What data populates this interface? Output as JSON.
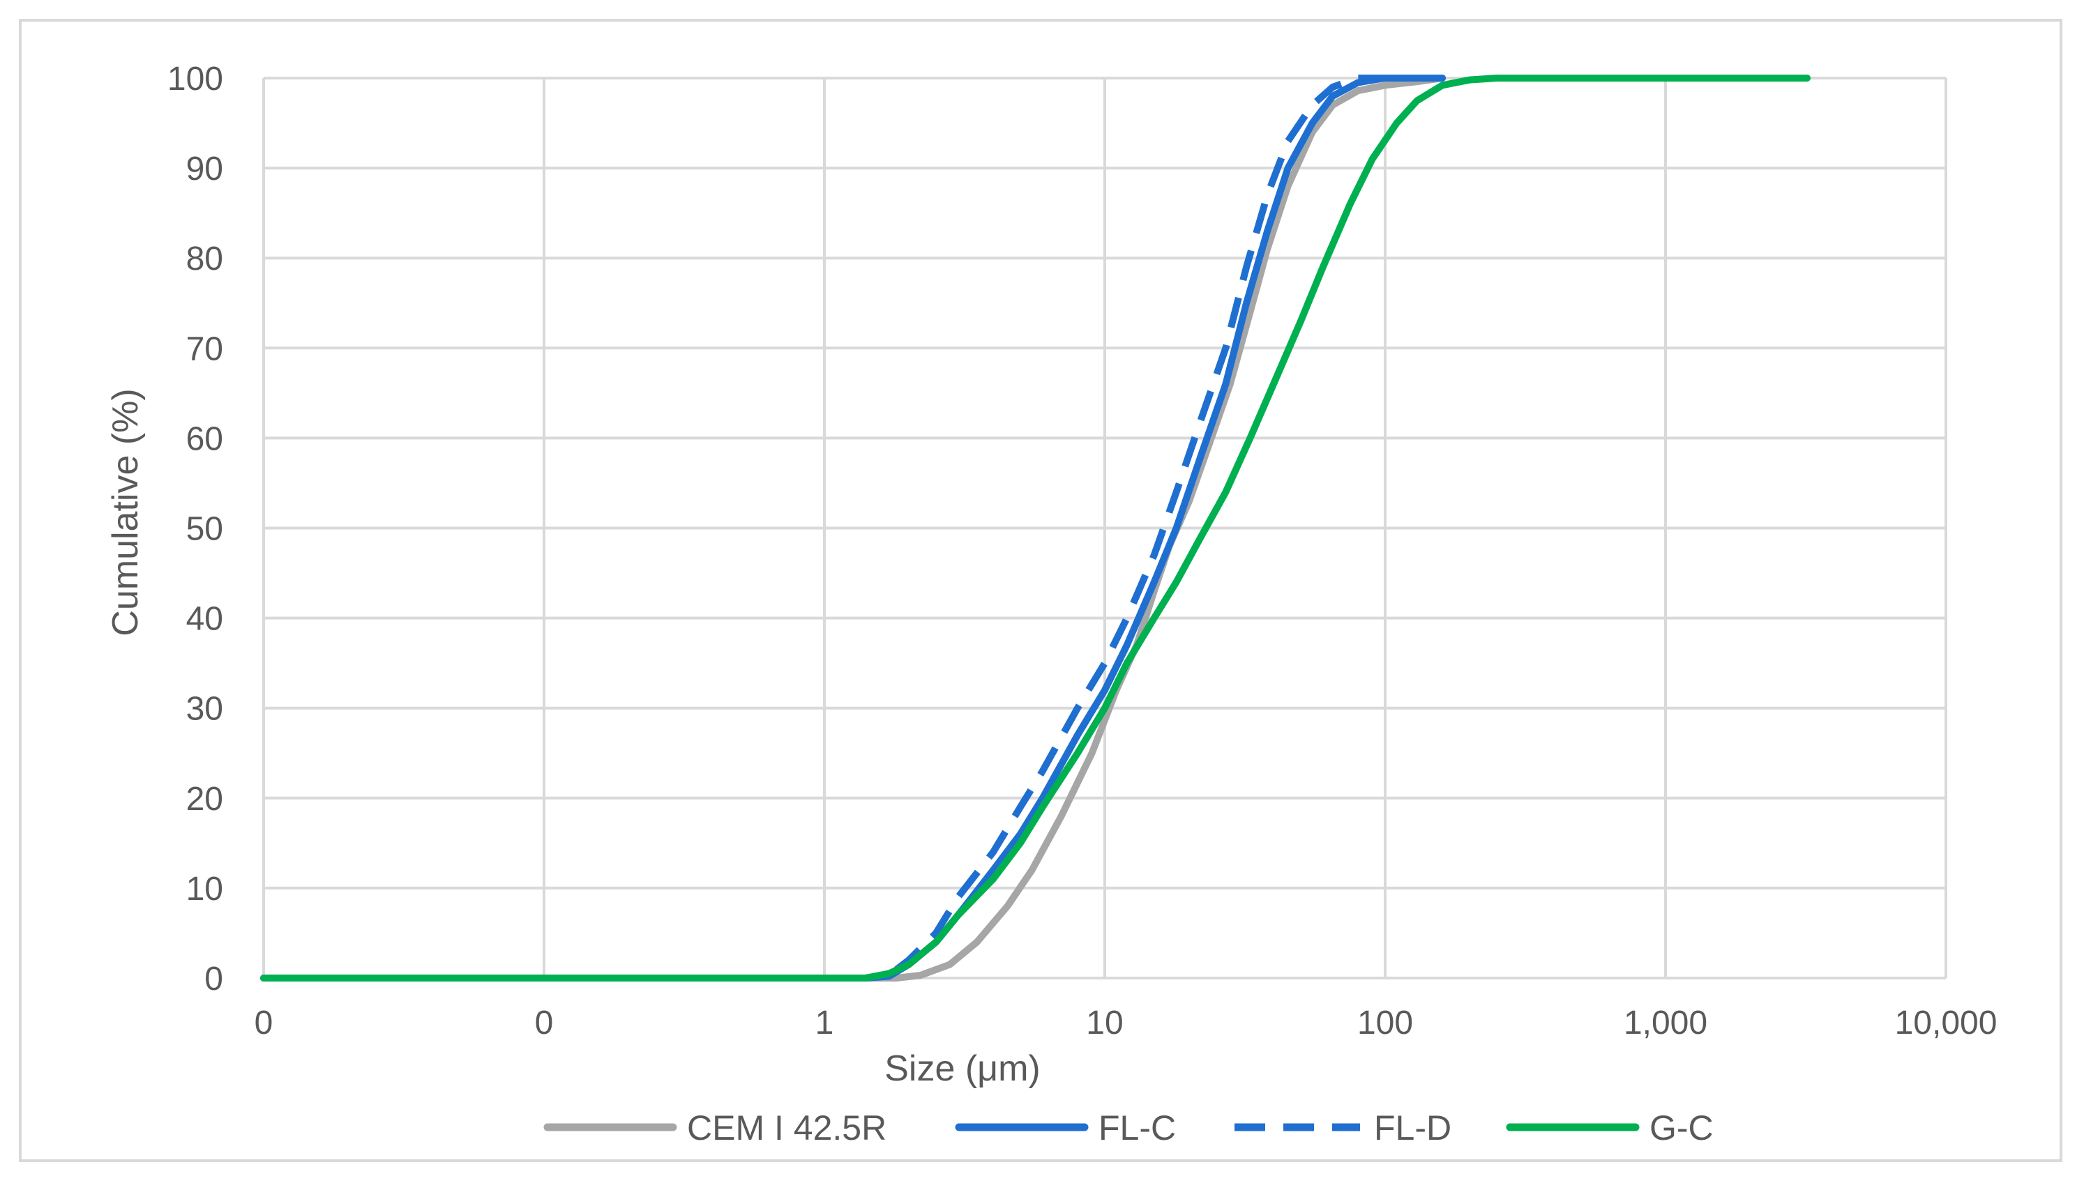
{
  "chart_data": {
    "type": "line",
    "title": "",
    "xlabel": "Size (μm)",
    "ylabel": "Cumulative (%)",
    "x_scale": "log",
    "xlim": [
      0.01,
      10000
    ],
    "ylim": [
      0,
      100
    ],
    "x_ticks": [
      {
        "value": 0.01,
        "label": "0"
      },
      {
        "value": 0.1,
        "label": "0"
      },
      {
        "value": 1,
        "label": "1"
      },
      {
        "value": 10,
        "label": "10"
      },
      {
        "value": 100,
        "label": "100"
      },
      {
        "value": 1000,
        "label": "1,000"
      },
      {
        "value": 10000,
        "label": "10,000"
      }
    ],
    "y_ticks": [
      0,
      10,
      20,
      30,
      40,
      50,
      60,
      70,
      80,
      90,
      100
    ],
    "grid": true,
    "legend_position": "bottom",
    "series": [
      {
        "name": "CEM I 42.5R",
        "color": "#a6a6a6",
        "dash": "solid",
        "x": [
          0.01,
          1.0,
          1.5,
          1.8,
          2.2,
          2.8,
          3.5,
          4.5,
          5.5,
          7,
          9,
          11,
          13,
          15,
          17,
          20,
          24,
          28,
          33,
          38,
          45,
          55,
          65,
          80,
          100,
          130,
          160
        ],
        "y": [
          0,
          0,
          0,
          0,
          0.3,
          1.5,
          4,
          8,
          12,
          18,
          25,
          32,
          37,
          43,
          48,
          53,
          60,
          66,
          74,
          81,
          88,
          94,
          97,
          98.6,
          99.2,
          99.6,
          100
        ]
      },
      {
        "name": "FL-C",
        "color": "#1f6fd1",
        "dash": "solid",
        "x": [
          0.01,
          1.0,
          1.4,
          1.7,
          2.0,
          2.5,
          3,
          4,
          5,
          6,
          8,
          10,
          12,
          15,
          18,
          22,
          27,
          32,
          38,
          45,
          55,
          65,
          80,
          100,
          120,
          160
        ],
        "y": [
          0,
          0,
          0,
          0.2,
          1.5,
          4,
          7,
          12,
          16,
          20,
          27,
          32,
          37,
          44,
          50,
          58,
          66,
          75,
          83,
          90,
          95,
          98,
          99.5,
          100,
          100,
          100
        ]
      },
      {
        "name": "FL-D",
        "color": "#1f6fd1",
        "dash": "dashed",
        "x": [
          0.01,
          1.0,
          1.4,
          1.7,
          2.0,
          2.5,
          3,
          4,
          5,
          6,
          8,
          10,
          12,
          15,
          18,
          22,
          27,
          32,
          38,
          45,
          55,
          65,
          80,
          100,
          120
        ],
        "y": [
          0,
          0,
          0,
          0.3,
          2,
          5,
          9,
          14,
          19,
          23,
          30,
          35,
          40,
          47,
          54,
          62,
          70,
          79,
          87,
          93,
          97,
          99,
          100,
          100,
          100
        ]
      },
      {
        "name": "G-C",
        "color": "#00b050",
        "dash": "solid",
        "x": [
          0.01,
          1.0,
          1.4,
          1.7,
          2.0,
          2.5,
          3,
          4,
          5,
          6,
          8,
          10,
          12,
          15,
          18,
          22,
          27,
          33,
          40,
          50,
          60,
          75,
          90,
          110,
          130,
          160,
          200,
          250,
          300,
          500,
          1000,
          3200
        ],
        "y": [
          0,
          0,
          0,
          0.5,
          1.5,
          4,
          7,
          11,
          15,
          19,
          25,
          30,
          35,
          40,
          44,
          49,
          54,
          60,
          66,
          73,
          79,
          86,
          91,
          95,
          97.5,
          99.2,
          99.8,
          100,
          100,
          100,
          100,
          100
        ]
      }
    ]
  }
}
